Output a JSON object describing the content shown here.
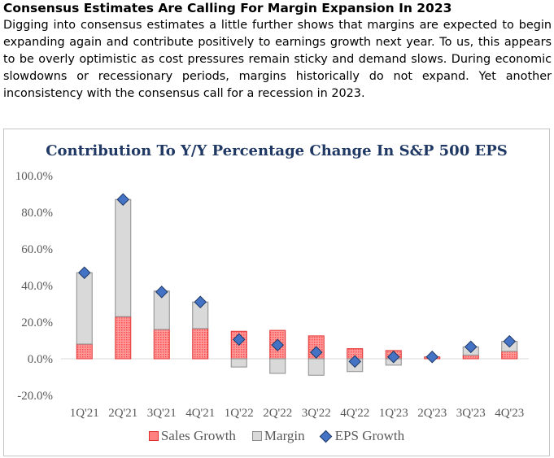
{
  "article": {
    "headline": "Consensus Estimates Are Calling For Margin Expansion In 2023",
    "body": "Digging into consensus estimates a little further shows that margins are expected to begin expanding again and contribute positively to earnings growth next year. To us, this appears to be overly optimistic as cost pressures remain sticky and demand slows. During economic slowdowns or recessionary periods, margins historically do not expand. Yet another inconsistency with the consensus call for a recession in 2023."
  },
  "chart_data": {
    "type": "bar",
    "title": "Contribution To Y/Y Percentage Change In S&P 500 EPS",
    "categories": [
      "1Q'21",
      "2Q'21",
      "3Q'21",
      "4Q'21",
      "1Q'22",
      "2Q'22",
      "3Q'22",
      "4Q'22",
      "1Q'23",
      "2Q'23",
      "3Q'23",
      "4Q'23"
    ],
    "series": [
      {
        "name": "Sales Growth",
        "kind": "stacked-bar",
        "color": "#ff8080",
        "values": [
          8,
          23,
          16,
          16.5,
          15,
          15.5,
          12.5,
          5.5,
          4.5,
          1,
          2,
          4
        ]
      },
      {
        "name": "Margin",
        "kind": "stacked-bar",
        "color": "#d9d9d9",
        "values": [
          39,
          64,
          21,
          14.5,
          -4.5,
          -8,
          -9,
          -7,
          -3.5,
          0,
          4.5,
          5.5
        ]
      },
      {
        "name": "EPS Growth",
        "kind": "marker",
        "color": "#4472c4",
        "values": [
          47,
          87,
          36.5,
          31,
          10.5,
          7.5,
          3.5,
          -1.5,
          1,
          1,
          6.5,
          9.5
        ]
      }
    ],
    "y_ticks": [
      "100.0%",
      "80.0%",
      "60.0%",
      "40.0%",
      "20.0%",
      "0.0%",
      "-20.0%"
    ],
    "ylim": [
      -20,
      100
    ],
    "grid": false,
    "legend_position": "bottom"
  }
}
